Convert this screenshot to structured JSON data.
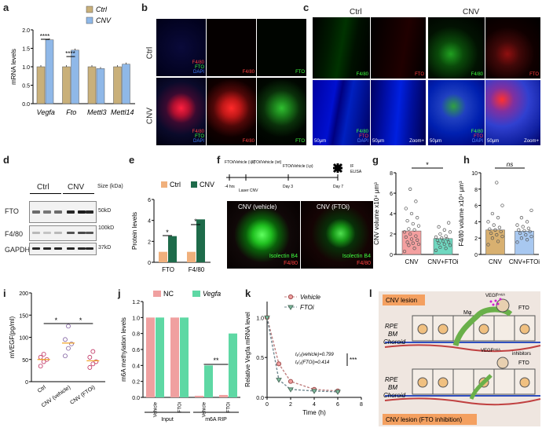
{
  "panels": {
    "a": {
      "label": "a",
      "ylabel": "mRNA levels",
      "legend": [
        "Ctrl",
        "CNV"
      ],
      "colors": {
        "ctrl": "#c9b07a",
        "cnv": "#8fb8e8"
      },
      "sig": [
        "****",
        "****"
      ]
    },
    "b": {
      "label": "b",
      "rows": [
        "Ctrl",
        "CNV"
      ],
      "tags": {
        "merge": [
          "F4/80",
          "FTO",
          "DAPI"
        ],
        "f480": "F4/80",
        "fto": "FTO"
      }
    },
    "c": {
      "label": "c",
      "groups": [
        "Ctrl",
        "CNV"
      ],
      "tags": {
        "f480": "F4/80",
        "fto": "FTO",
        "merge": [
          "F4/80",
          "FTO",
          "DAPI"
        ],
        "scale": "50μm",
        "zoom": "Zoom+"
      }
    },
    "d": {
      "label": "d",
      "groups": [
        "Ctrl",
        "CNV"
      ],
      "rows": [
        "FTO",
        "F4/80",
        "GAPDH"
      ],
      "size_header": "Size (kDa)",
      "sizes": [
        "50kD",
        "100kD",
        "37kD"
      ]
    },
    "e": {
      "label": "e",
      "ylabel": "Protein levels",
      "legend": [
        "Ctrl",
        "CNV"
      ],
      "colors": {
        "ctrl": "#f0b07c",
        "cnv": "#1e6b4a"
      },
      "sig": [
        "*",
        "*"
      ]
    },
    "f": {
      "label": "f",
      "timeline": {
        "events": [
          "FTOi/Vehicle (i.p)",
          "FTOi/Vehicle (ivt)",
          "FTOi/Vehicle (i.p)"
        ],
        "ticks": [
          "-4 hrs",
          "Laser CNV",
          "Day 3",
          "Day 7"
        ],
        "end": [
          "IF",
          "ELISA"
        ]
      },
      "images": [
        {
          "title": "CNV (vehicle)",
          "stain1": "Isolectin B4",
          "stain2": "F4/80"
        },
        {
          "title": "CNV (FTOi)",
          "stain1": "Isolectin B4",
          "stain2": "F4/80"
        }
      ]
    },
    "g": {
      "label": "g",
      "ylabel": "CNV volume x10⁴ μm³",
      "sig": "*"
    },
    "h": {
      "label": "h",
      "ylabel": "F4/80 volume x10⁴ μm³",
      "sig": "ns"
    },
    "i": {
      "label": "i",
      "ylabel": "mVEGF(pg/ml)",
      "sig": [
        "*",
        "*"
      ]
    },
    "j": {
      "label": "j",
      "ylabel": "m6A methylation levels",
      "legend": [
        "NC",
        "Vegfa"
      ],
      "colors": {
        "nc": "#f0a0a0",
        "vegfa": "#5ed8a4"
      },
      "sig": "**",
      "groups": [
        "Input",
        "m6A RIP"
      ]
    },
    "k": {
      "label": "k",
      "ylabel": "Relative Vegfa mRNA level",
      "xlabel": "Time (h)",
      "legend": [
        "Vehicle",
        "FTOi"
      ],
      "annot": [
        "t₁/₂(vehicle)=0.799",
        "t₁/₂(FTOi)=0.414"
      ],
      "sig": "***"
    },
    "l": {
      "label": "l",
      "top_title": "CNV lesion",
      "bottom_title": "CNV lesion (FTO inhibition)",
      "layers": [
        "RPE",
        "BM",
        "Choroid"
      ],
      "labels": {
        "mphi": "Mφ",
        "vegf": "VEGFᵐ⁶ᴬ",
        "fto": "FTO",
        "inhibitors": "inhibitors"
      }
    }
  },
  "chart_data": [
    {
      "panel": "a",
      "type": "bar",
      "categories": [
        "Vegfa",
        "Fto",
        "Mettl3",
        "Mettl14"
      ],
      "series": [
        {
          "name": "Ctrl",
          "values": [
            1.0,
            1.0,
            1.0,
            1.0
          ]
        },
        {
          "name": "CNV",
          "values": [
            1.73,
            1.45,
            0.95,
            1.07
          ]
        }
      ],
      "ylabel": "mRNA levels",
      "ylim": [
        0,
        2.0
      ],
      "yticks": [
        "0.0",
        "0.5",
        "1.0",
        "1.5",
        "2.0"
      ]
    },
    {
      "panel": "e",
      "type": "bar",
      "categories": [
        "FTO",
        "F4/80"
      ],
      "series": [
        {
          "name": "Ctrl",
          "values": [
            1.0,
            1.0
          ]
        },
        {
          "name": "CNV",
          "values": [
            2.5,
            4.1
          ]
        }
      ],
      "ylabel": "Protein levels",
      "ylim": [
        0,
        6
      ],
      "yticks": [
        "0",
        "2",
        "4",
        "6"
      ]
    },
    {
      "panel": "g",
      "type": "scatter",
      "categories": [
        "CNV",
        "CNV+FTOi"
      ],
      "means": [
        2.3,
        1.55
      ],
      "ylim": [
        0,
        8
      ],
      "yticks": [
        "0",
        "2",
        "4",
        "6",
        "8"
      ],
      "points": [
        [
          0.3,
          0.6,
          0.9,
          1.0,
          1.1,
          1.2,
          1.4,
          1.5,
          1.7,
          1.8,
          2.0,
          2.2,
          2.4,
          2.5,
          2.8,
          3.0,
          3.3,
          3.6,
          4.0,
          4.5,
          5.2,
          6.4
        ],
        [
          0.4,
          0.6,
          0.7,
          0.9,
          1.0,
          1.1,
          1.2,
          1.3,
          1.4,
          1.5,
          1.6,
          1.7,
          1.8,
          2.0,
          2.2,
          2.4,
          2.7,
          3.1
        ]
      ]
    },
    {
      "panel": "h",
      "type": "scatter",
      "categories": [
        "CNV",
        "CNV+FTOi"
      ],
      "means": [
        3.0,
        2.85
      ],
      "ylim": [
        0,
        10
      ],
      "yticks": [
        "0",
        "2",
        "4",
        "6",
        "8",
        "10"
      ],
      "points": [
        [
          1.2,
          1.6,
          2.0,
          2.2,
          2.4,
          2.6,
          2.8,
          3.0,
          3.1,
          3.3,
          3.6,
          4.0,
          4.5,
          5.0,
          6.0,
          8.8
        ],
        [
          1.5,
          1.8,
          2.0,
          2.2,
          2.4,
          2.6,
          2.8,
          2.9,
          3.0,
          3.2,
          3.4,
          3.6,
          4.0,
          4.5,
          5.4
        ]
      ]
    },
    {
      "panel": "i",
      "type": "scatter",
      "categories": [
        "Ctrl",
        "CNV (vehicle)",
        "CNV (FTOi)"
      ],
      "means": [
        50,
        87,
        47
      ],
      "ylim": [
        0,
        200
      ],
      "yticks": [
        "0",
        "50",
        "100",
        "150",
        "200"
      ],
      "points": [
        [
          35,
          45,
          50,
          55,
          62
        ],
        [
          58,
          75,
          85,
          95,
          125
        ],
        [
          32,
          40,
          45,
          55,
          68
        ]
      ]
    },
    {
      "panel": "j",
      "type": "bar",
      "categories": [
        "Vehicle",
        "FTOi",
        "Vehicle",
        "FTOi"
      ],
      "series": [
        {
          "name": "NC",
          "values": [
            1.0,
            1.0,
            0.02,
            0.03
          ]
        },
        {
          "name": "Vegfa",
          "values": [
            1.0,
            1.0,
            0.4,
            0.8
          ]
        }
      ],
      "ylim": [
        0,
        1.2
      ],
      "yticks": [
        "0.0",
        "0.2",
        "0.4",
        "0.6",
        "0.8",
        "1.0",
        "1.2"
      ]
    },
    {
      "panel": "k",
      "type": "line",
      "x": [
        0,
        1,
        2,
        4,
        6
      ],
      "series": [
        {
          "name": "Vehicle",
          "values": [
            1.0,
            0.42,
            0.2,
            0.1,
            0.08
          ]
        },
        {
          "name": "FTOi",
          "values": [
            1.0,
            0.22,
            0.1,
            0.08,
            0.07
          ]
        }
      ],
      "xlim": [
        0,
        8
      ],
      "ylim": [
        0,
        1.2
      ],
      "xticks": [
        "0",
        "2",
        "4",
        "6",
        "8"
      ],
      "yticks": [
        "0.0",
        "0.5",
        "1.0"
      ]
    }
  ]
}
